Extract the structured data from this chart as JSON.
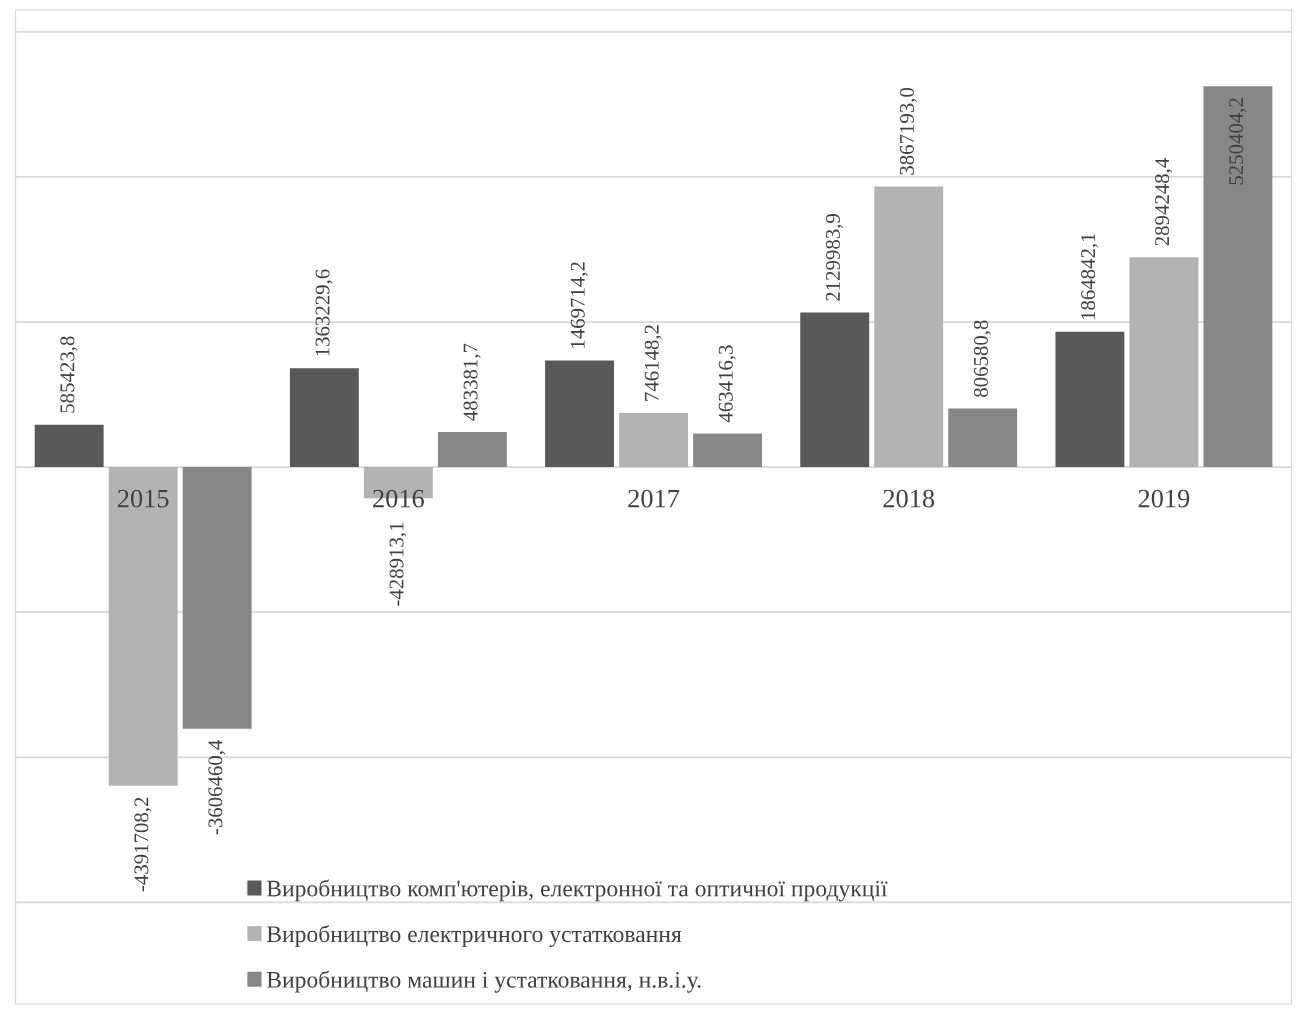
{
  "chart_data": {
    "type": "bar",
    "categories": [
      "2015",
      "2016",
      "2017",
      "2018",
      "2019"
    ],
    "series": [
      {
        "name": "Виробництво комп'ютерів, електронної та оптичної продукції",
        "color": "#595959",
        "values": [
          585423.8,
          1363229.6,
          1469714.2,
          2129983.9,
          1864842.1
        ],
        "value_labels": [
          "585423,8",
          "1363229,6",
          "1469714,2",
          "2129983,9",
          "1864842,1"
        ]
      },
      {
        "name": "Виробництво електричного устатковання",
        "color": "#b3b3b3",
        "values": [
          -4391708.2,
          -428913.1,
          746148.2,
          3867193.0,
          2894248.4
        ],
        "value_labels": [
          "-4391708,2",
          "-428913,1",
          "746148,2",
          "3867193,0",
          "2894248,4"
        ]
      },
      {
        "name": "Виробництво машин і устатковання, н.в.і.у.",
        "color": "#878787",
        "values": [
          -3606460.4,
          483381.7,
          463416.3,
          806580.8,
          5250404.2
        ],
        "value_labels": [
          "-3606460,4",
          "483381,7",
          "463416,3",
          "806580,8",
          "5250404,2"
        ]
      }
    ],
    "ylim": [
      -7400000,
      6300000
    ],
    "yticks": [
      {
        "value": -6000000,
        "label": null
      },
      {
        "value": -4000000,
        "label": null
      },
      {
        "value": -2000000,
        "label": null
      },
      {
        "value": 0,
        "label": null
      },
      {
        "value": 2000000,
        "label": null
      },
      {
        "value": 4000000,
        "label": null
      },
      {
        "value": 6000000,
        "label": null
      }
    ],
    "tick_labels": "x",
    "grid": "y",
    "legend": "bottom"
  }
}
